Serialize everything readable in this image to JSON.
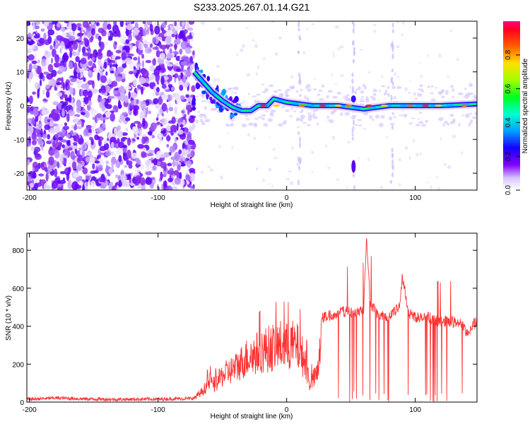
{
  "figure_title": "S233.2025.267.01.14.G21",
  "chart_data": [
    {
      "type": "heatmap",
      "title": "S233.2025.267.01.14.G21",
      "xlabel": "Height of straight line (km)",
      "ylabel": "Frequency (Hz)",
      "xlim": [
        -202,
        148
      ],
      "ylim": [
        -25,
        25
      ],
      "xticks": [
        -200,
        -100,
        0,
        100
      ],
      "yticks": [
        -20,
        -10,
        0,
        10,
        20
      ],
      "colorbar": {
        "label": "Normalized spectral amplitude",
        "range": [
          0,
          1
        ],
        "ticks": [
          0.0,
          0.2,
          0.4,
          0.6,
          0.8
        ],
        "colormap": [
          "#ffffff",
          "#a000ff",
          "#2000ff",
          "#00c0ff",
          "#00ff40",
          "#c0ff00",
          "#ffa000",
          "#ff0000",
          "#ff0080"
        ]
      },
      "features": {
        "noise_region_x": [
          -202,
          -72
        ],
        "signal_track": [
          {
            "x": -72,
            "y": 10
          },
          {
            "x": -65,
            "y": 7
          },
          {
            "x": -58,
            "y": 4
          },
          {
            "x": -50,
            "y": 1.5
          },
          {
            "x": -42,
            "y": -0.5
          },
          {
            "x": -35,
            "y": -1.5
          },
          {
            "x": -28,
            "y": -1.5
          },
          {
            "x": -22,
            "y": 0
          },
          {
            "x": -15,
            "y": 0
          },
          {
            "x": -10,
            "y": 2
          },
          {
            "x": 0,
            "y": 1
          },
          {
            "x": 20,
            "y": 0
          },
          {
            "x": 40,
            "y": 0
          },
          {
            "x": 60,
            "y": -1
          },
          {
            "x": 80,
            "y": 0
          },
          {
            "x": 100,
            "y": 0
          },
          {
            "x": 120,
            "y": 0
          },
          {
            "x": 148,
            "y": 0.5
          }
        ],
        "vertical_streaks_x": [
          10,
          52,
          82
        ]
      }
    },
    {
      "type": "line",
      "xlabel": "Height of straight line (km)",
      "ylabel": "SNR (10 * v/v)",
      "xlim": [
        -202,
        148
      ],
      "ylim": [
        0,
        890
      ],
      "xticks": [
        -200,
        -100,
        0,
        100
      ],
      "yticks": [
        0,
        200,
        400,
        600,
        800
      ],
      "color": "#ff3333",
      "series": [
        {
          "x": [
            -202,
            -190,
            -180,
            -170,
            -160,
            -150,
            -140,
            -130,
            -120,
            -110,
            -100,
            -90,
            -80,
            -72,
            -65,
            -60,
            -56,
            -50,
            -45,
            -40,
            -35,
            -30,
            -25,
            -20,
            -15,
            -10,
            -5,
            0,
            5,
            10,
            15,
            18,
            22,
            25,
            27,
            30,
            35,
            40,
            45,
            50,
            55,
            60,
            62,
            65,
            70,
            75,
            80,
            85,
            88,
            90,
            95,
            100,
            105,
            110,
            115,
            120,
            125,
            130,
            135,
            140,
            145,
            148
          ],
          "values": [
            15,
            18,
            22,
            20,
            17,
            16,
            15,
            14,
            15,
            16,
            15,
            17,
            18,
            20,
            60,
            110,
            90,
            140,
            160,
            180,
            210,
            240,
            250,
            270,
            280,
            290,
            300,
            290,
            300,
            280,
            200,
            100,
            130,
            170,
            440,
            450,
            460,
            470,
            480,
            470,
            480,
            490,
            880,
            520,
            470,
            450,
            460,
            480,
            520,
            660,
            470,
            450,
            440,
            450,
            430,
            420,
            430,
            420,
            420,
            360,
            410,
            420
          ]
        }
      ]
    }
  ]
}
